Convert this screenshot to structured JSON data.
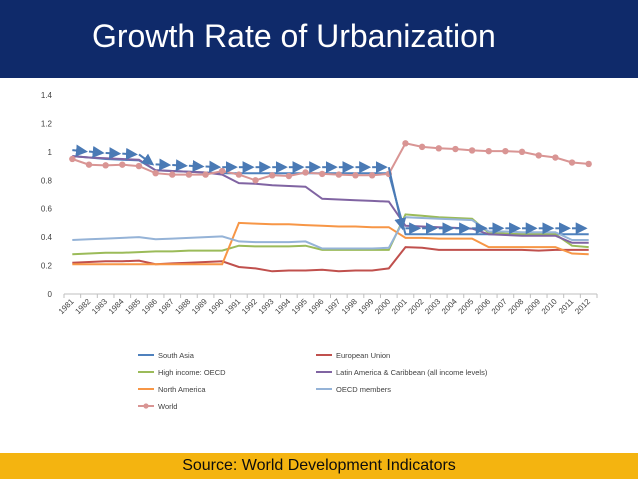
{
  "slide": {
    "title": "Growth Rate of Urbanization",
    "source": "Source: World Development Indicators",
    "colors": {
      "title_bar": "#0f2a6a",
      "source_bar": "#f4b410",
      "arrow": "#4a7ab5"
    }
  },
  "chart_data": {
    "type": "line",
    "title": "",
    "xlabel": "",
    "ylabel": "",
    "ylim": [
      0,
      1.4
    ],
    "yticks": [
      "0",
      "0.2",
      "0.4",
      "0.6",
      "0.8",
      "1",
      "1.2",
      "1.4"
    ],
    "yticks_values": [
      0,
      0.2,
      0.4,
      0.6,
      0.8,
      1.0,
      1.2,
      1.4
    ],
    "categories": [
      "1981",
      "1982",
      "1983",
      "1984",
      "1985",
      "1986",
      "1987",
      "1988",
      "1989",
      "1990",
      "1991",
      "1992",
      "1993",
      "1994",
      "1995",
      "1996",
      "1997",
      "1998",
      "1999",
      "2000",
      "2001",
      "2002",
      "2003",
      "2004",
      "2005",
      "2006",
      "2007",
      "2008",
      "2009",
      "2010",
      "2011",
      "2012"
    ],
    "grid": false,
    "legend_position": "bottom",
    "series": [
      {
        "name": "South Asia",
        "color": "#4f81bd",
        "marker": false,
        "values": [
          0.97,
          0.96,
          0.95,
          0.945,
          0.94,
          0.87,
          0.865,
          0.86,
          0.855,
          0.85,
          0.85,
          0.85,
          0.85,
          0.85,
          0.85,
          0.85,
          0.85,
          0.85,
          0.85,
          0.85,
          0.42,
          0.42,
          0.42,
          0.42,
          0.42,
          0.42,
          0.42,
          0.42,
          0.42,
          0.42,
          0.42,
          0.42
        ]
      },
      {
        "name": "European Union",
        "color": "#c0504d",
        "marker": false,
        "values": [
          0.22,
          0.225,
          0.23,
          0.23,
          0.235,
          0.21,
          0.215,
          0.22,
          0.225,
          0.23,
          0.19,
          0.18,
          0.16,
          0.165,
          0.165,
          0.17,
          0.16,
          0.165,
          0.165,
          0.18,
          0.33,
          0.325,
          0.31,
          0.31,
          0.31,
          0.31,
          0.31,
          0.31,
          0.305,
          0.31,
          0.31,
          0.31
        ]
      },
      {
        "name": "High income: OECD",
        "color": "#9bbb59",
        "marker": false,
        "values": [
          0.28,
          0.285,
          0.29,
          0.29,
          0.295,
          0.3,
          0.3,
          0.305,
          0.305,
          0.305,
          0.34,
          0.335,
          0.335,
          0.335,
          0.34,
          0.31,
          0.31,
          0.31,
          0.31,
          0.31,
          0.56,
          0.55,
          0.54,
          0.535,
          0.53,
          0.43,
          0.425,
          0.42,
          0.42,
          0.42,
          0.34,
          0.33
        ]
      },
      {
        "name": "Latin America & Caribbean (all income levels)",
        "color": "#8064a2",
        "marker": false,
        "values": [
          0.97,
          0.96,
          0.955,
          0.95,
          0.945,
          0.87,
          0.865,
          0.86,
          0.855,
          0.84,
          0.78,
          0.775,
          0.765,
          0.76,
          0.755,
          0.67,
          0.665,
          0.66,
          0.655,
          0.65,
          0.48,
          0.475,
          0.47,
          0.465,
          0.46,
          0.42,
          0.415,
          0.41,
          0.41,
          0.41,
          0.36,
          0.36
        ]
      },
      {
        "name": "North America",
        "color": "#f79646",
        "marker": false,
        "values": [
          0.21,
          0.21,
          0.21,
          0.21,
          0.21,
          0.21,
          0.21,
          0.21,
          0.21,
          0.21,
          0.5,
          0.495,
          0.49,
          0.49,
          0.485,
          0.48,
          0.475,
          0.475,
          0.47,
          0.47,
          0.395,
          0.395,
          0.39,
          0.39,
          0.39,
          0.33,
          0.33,
          0.33,
          0.33,
          0.33,
          0.285,
          0.28
        ]
      },
      {
        "name": "OECD members",
        "color": "#95b3d7",
        "marker": false,
        "values": [
          0.38,
          0.385,
          0.39,
          0.395,
          0.4,
          0.385,
          0.39,
          0.395,
          0.4,
          0.405,
          0.37,
          0.365,
          0.365,
          0.365,
          0.37,
          0.32,
          0.32,
          0.32,
          0.32,
          0.325,
          0.54,
          0.535,
          0.53,
          0.525,
          0.52,
          0.44,
          0.44,
          0.435,
          0.435,
          0.435,
          0.38,
          0.38
        ]
      },
      {
        "name": "World",
        "color": "#d99594",
        "marker": true,
        "values": [
          0.95,
          0.91,
          0.905,
          0.91,
          0.9,
          0.85,
          0.84,
          0.84,
          0.84,
          0.865,
          0.84,
          0.8,
          0.835,
          0.83,
          0.855,
          0.845,
          0.84,
          0.835,
          0.835,
          0.845,
          1.06,
          1.035,
          1.025,
          1.02,
          1.01,
          1.005,
          1.005,
          1.0,
          0.975,
          0.96,
          0.925,
          0.915
        ]
      }
    ]
  }
}
